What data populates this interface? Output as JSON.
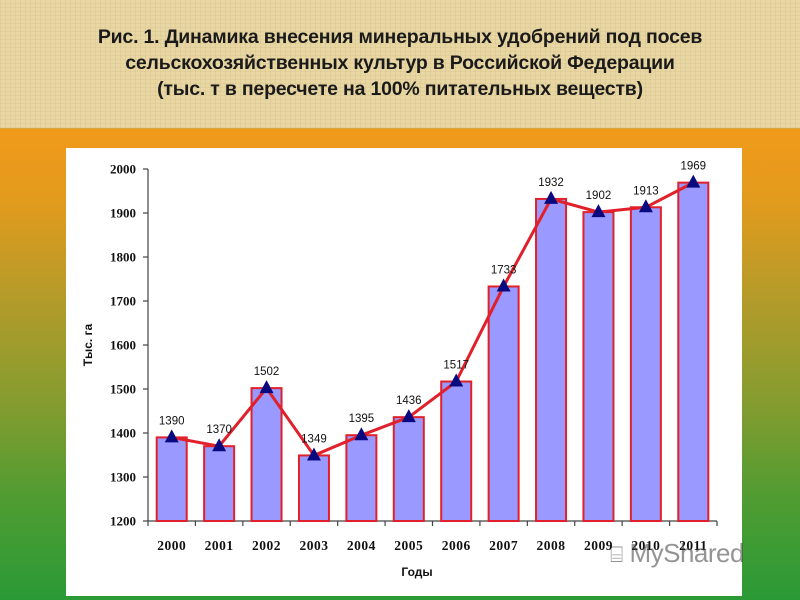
{
  "header": {
    "title_lines": [
      "Рис. 1. Динамика внесения минеральных удобрений под посев",
      "сельскохозяйственных культур в Российской Федерации",
      "(тыс. т в пересчете на 100% питательных веществ)"
    ]
  },
  "watermark": {
    "text": "MyShared",
    "icon": "presentation-board-icon"
  },
  "colors": {
    "bar_fill": "#9999ff",
    "bar_border": "#e0202a",
    "line": "#e0202a",
    "marker": "#0a0a80",
    "background_top": "#f09a1a",
    "background_bottom": "#2a9a36",
    "header_bg": "#e8d6a3"
  },
  "chart_data": {
    "type": "bar",
    "title": "Рис. 1. Динамика внесения минеральных удобрений под посев сельскохозяйственных культур в Российской Федерации (тыс. т в пересчете на 100% питательных веществ)",
    "xlabel": "Годы",
    "ylabel": "Тыс. га",
    "categories": [
      "2000",
      "2001",
      "2002",
      "2003",
      "2004",
      "2005",
      "2006",
      "2007",
      "2008",
      "2009",
      "2010",
      "2011"
    ],
    "series": [
      {
        "name": "bars",
        "type": "bar",
        "values": [
          1390,
          1370,
          1502,
          1349,
          1395,
          1436,
          1517,
          1733,
          1932,
          1902,
          1913,
          1969
        ]
      },
      {
        "name": "line",
        "type": "line",
        "marker": "triangle",
        "values": [
          1390,
          1370,
          1502,
          1349,
          1395,
          1436,
          1517,
          1733,
          1932,
          1902,
          1913,
          1969
        ]
      }
    ],
    "data_labels": [
      "1390",
      "1370",
      "1502",
      "1349",
      "1395",
      "1436",
      "1517",
      "1733",
      "1932",
      "1902",
      "1913",
      "1969"
    ],
    "yticks": [
      1200,
      1300,
      1400,
      1500,
      1600,
      1700,
      1800,
      1900,
      2000
    ],
    "ylim": [
      1200,
      2000
    ],
    "grid": false,
    "legend": null
  }
}
